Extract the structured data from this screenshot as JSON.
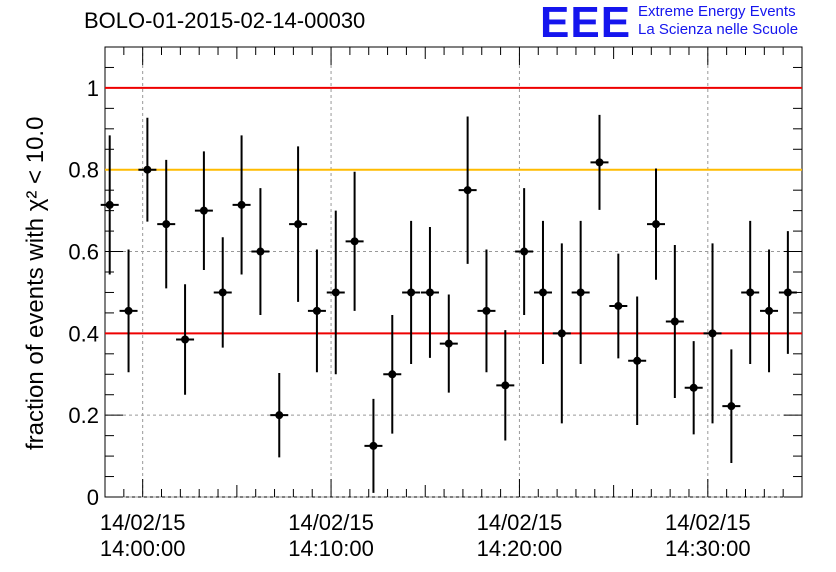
{
  "title": "BOLO-01-2015-02-14-00030",
  "logo": {
    "mark": "EEE",
    "line1": "Extreme Energy Events",
    "line2": "La Scienza nelle Scuole"
  },
  "colors": {
    "points": "#000000",
    "red_lines": "#ee0000",
    "yellow_line": "#ffbb00",
    "grid": "#999999",
    "logo": "#1515ee"
  },
  "chart_data": {
    "type": "scatter",
    "title": "BOLO-01-2015-02-14-00030",
    "xlabel": "",
    "ylabel": "fraction of events with χ² < 10.0",
    "ylim": [
      0,
      1.1
    ],
    "xlim_minutes": [
      -2,
      35
    ],
    "grid": true,
    "reference_lines": [
      {
        "y": 1.0,
        "color": "red"
      },
      {
        "y": 0.8,
        "color": "yellow"
      },
      {
        "y": 0.4,
        "color": "red"
      }
    ],
    "x_ticks": [
      {
        "date": "14/02/15",
        "time": "14:00:00",
        "minute": 0
      },
      {
        "date": "14/02/15",
        "time": "14:10:00",
        "minute": 10
      },
      {
        "date": "14/02/15",
        "time": "14:20:00",
        "minute": 20
      },
      {
        "date": "14/02/15",
        "time": "14:30:00",
        "minute": 30
      }
    ],
    "y_ticks": [
      "0",
      "0.2",
      "0.4",
      "0.6",
      "0.8",
      "1"
    ],
    "points": [
      {
        "minute": -1.75,
        "y": 0.714,
        "err": 0.17
      },
      {
        "minute": -0.75,
        "y": 0.455,
        "err": 0.15
      },
      {
        "minute": 0.25,
        "y": 0.8,
        "err": 0.127
      },
      {
        "minute": 1.25,
        "y": 0.667,
        "err": 0.157
      },
      {
        "minute": 2.25,
        "y": 0.385,
        "err": 0.135
      },
      {
        "minute": 3.25,
        "y": 0.7,
        "err": 0.145
      },
      {
        "minute": 4.25,
        "y": 0.5,
        "err": 0.135
      },
      {
        "minute": 5.25,
        "y": 0.714,
        "err": 0.17
      },
      {
        "minute": 6.25,
        "y": 0.6,
        "err": 0.155
      },
      {
        "minute": 7.25,
        "y": 0.2,
        "err": 0.103
      },
      {
        "minute": 8.25,
        "y": 0.667,
        "err": 0.19
      },
      {
        "minute": 9.25,
        "y": 0.455,
        "err": 0.15
      },
      {
        "minute": 10.25,
        "y": 0.5,
        "err": 0.2
      },
      {
        "minute": 11.25,
        "y": 0.625,
        "err": 0.17
      },
      {
        "minute": 12.25,
        "y": 0.125,
        "err": 0.115
      },
      {
        "minute": 13.25,
        "y": 0.3,
        "err": 0.145
      },
      {
        "minute": 14.25,
        "y": 0.5,
        "err": 0.175
      },
      {
        "minute": 15.25,
        "y": 0.5,
        "err": 0.16
      },
      {
        "minute": 16.25,
        "y": 0.375,
        "err": 0.12
      },
      {
        "minute": 17.25,
        "y": 0.75,
        "err": 0.18
      },
      {
        "minute": 18.25,
        "y": 0.455,
        "err": 0.15
      },
      {
        "minute": 19.25,
        "y": 0.273,
        "err": 0.135
      },
      {
        "minute": 20.25,
        "y": 0.6,
        "err": 0.155
      },
      {
        "minute": 21.25,
        "y": 0.5,
        "err": 0.175
      },
      {
        "minute": 22.25,
        "y": 0.4,
        "err": 0.22
      },
      {
        "minute": 23.25,
        "y": 0.5,
        "err": 0.175
      },
      {
        "minute": 24.25,
        "y": 0.818,
        "err": 0.116
      },
      {
        "minute": 25.25,
        "y": 0.467,
        "err": 0.128
      },
      {
        "minute": 26.25,
        "y": 0.333,
        "err": 0.157
      },
      {
        "minute": 27.25,
        "y": 0.667,
        "err": 0.136
      },
      {
        "minute": 28.25,
        "y": 0.429,
        "err": 0.187
      },
      {
        "minute": 29.25,
        "y": 0.267,
        "err": 0.114
      },
      {
        "minute": 30.25,
        "y": 0.4,
        "err": 0.22
      },
      {
        "minute": 31.25,
        "y": 0.222,
        "err": 0.139
      },
      {
        "minute": 32.25,
        "y": 0.5,
        "err": 0.175
      },
      {
        "minute": 33.25,
        "y": 0.455,
        "err": 0.15
      },
      {
        "minute": 34.25,
        "y": 0.5,
        "err": 0.15
      }
    ]
  }
}
